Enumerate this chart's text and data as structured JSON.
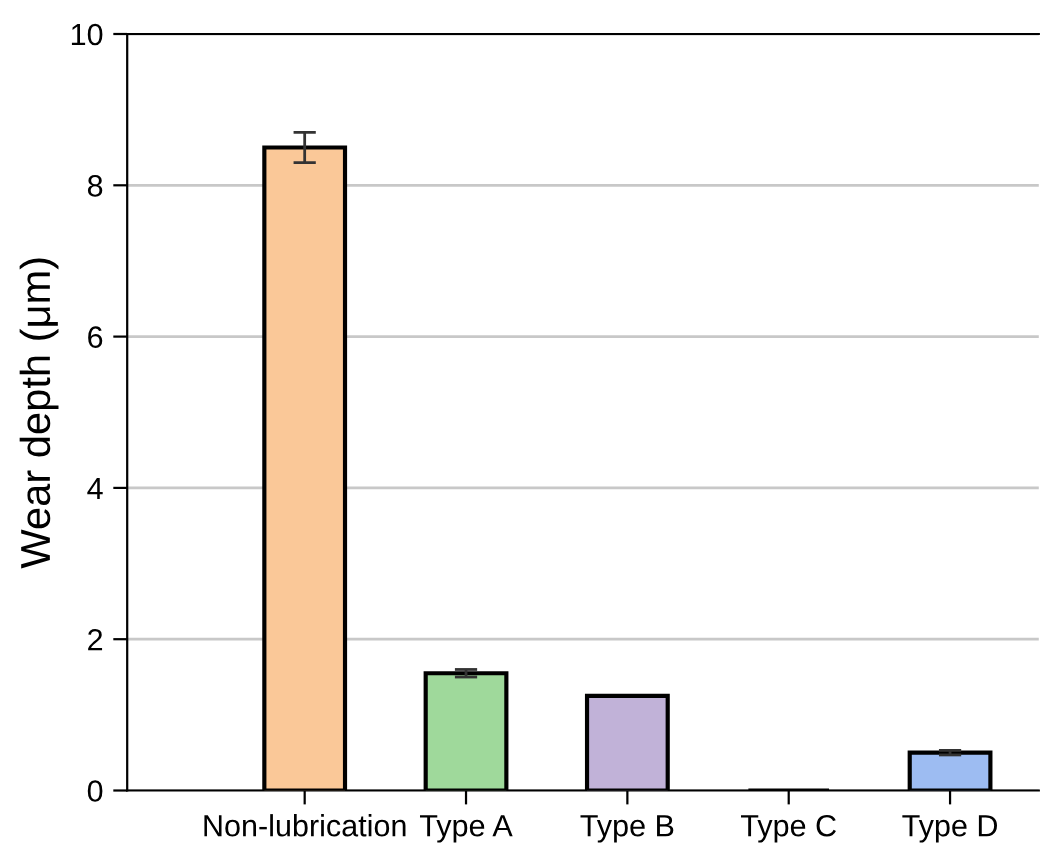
{
  "chart_data": {
    "type": "bar",
    "ylabel": "Wear depth (μm)",
    "categories": [
      "Non-lubrication",
      "Type A",
      "Type B",
      "Type C",
      "Type D"
    ],
    "values": [
      8.5,
      1.55,
      1.25,
      0,
      0.5
    ],
    "errors": [
      0.2,
      0.05,
      null,
      null,
      0.03
    ],
    "colors": [
      "#fac898",
      "#9fd99b",
      "#c1b2d8",
      "#000000",
      "#9dbcf2"
    ],
    "ylim": [
      0,
      10
    ],
    "yticks": [
      0,
      2,
      4,
      6,
      8,
      10
    ],
    "grid": "y"
  }
}
